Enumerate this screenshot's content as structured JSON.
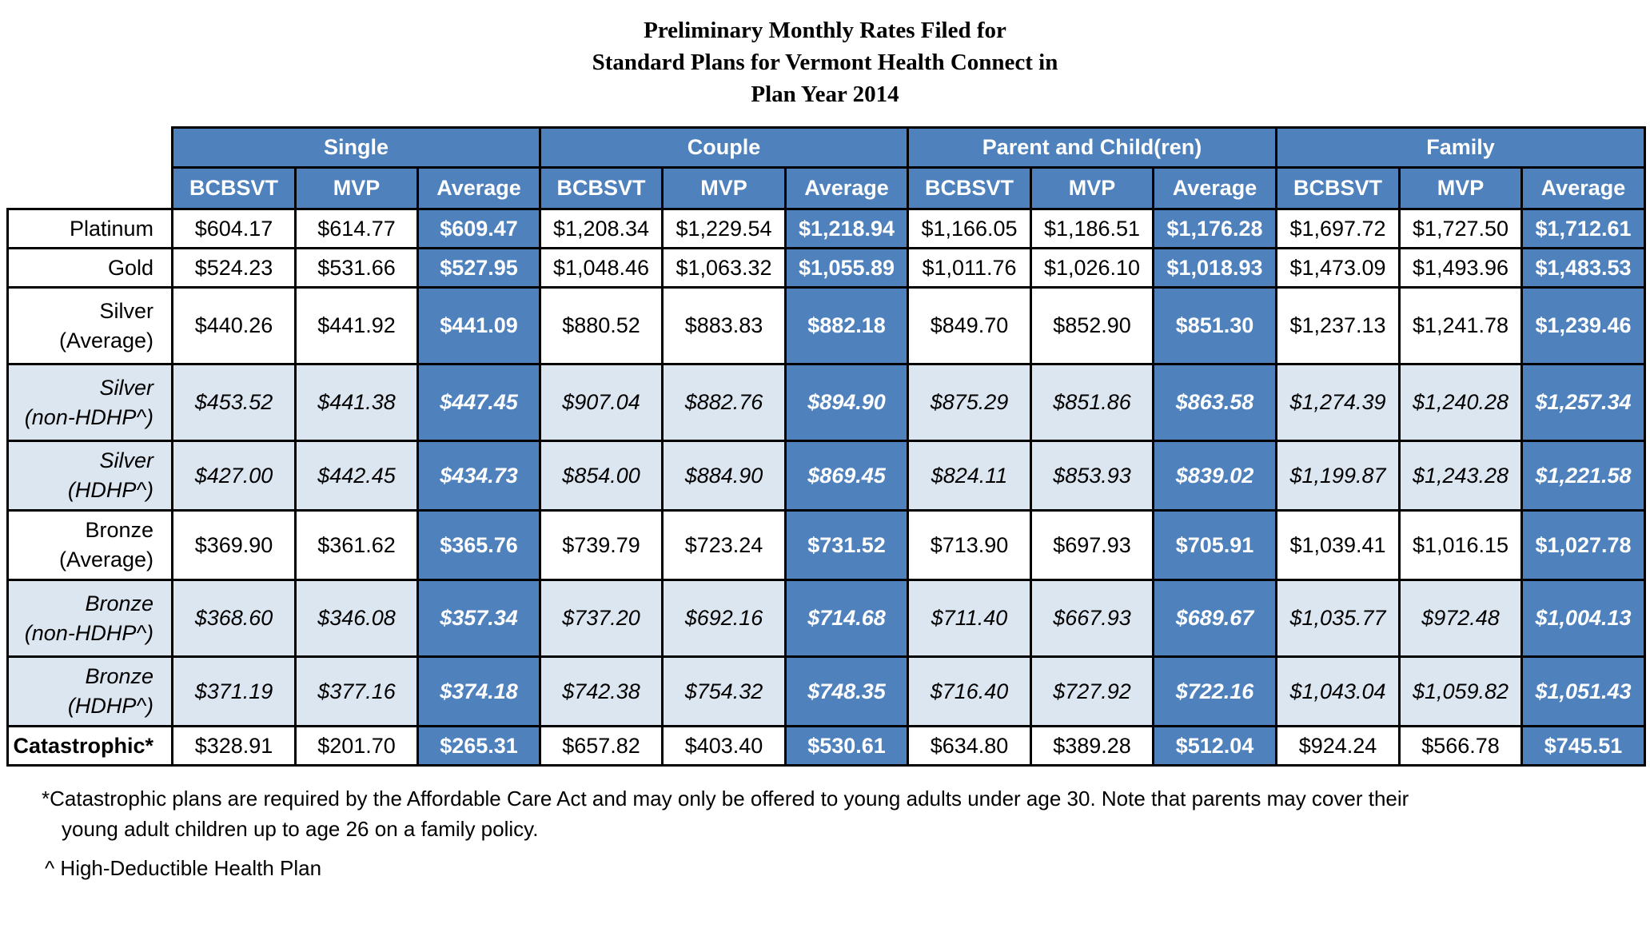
{
  "title": {
    "line1": "Preliminary Monthly Rates Filed for",
    "line2": "Standard Plans for Vermont Health Connect in",
    "line3": "Plan Year 2014"
  },
  "groups": [
    "Single",
    "Couple",
    "Parent and Child(ren)",
    "Family"
  ],
  "subheaders": [
    "BCBSVT",
    "MVP",
    "Average"
  ],
  "rows": [
    {
      "label": "Platinum",
      "values": [
        "$604.17",
        "$614.77",
        "$609.47",
        "$1,208.34",
        "$1,229.54",
        "$1,218.94",
        "$1,166.05",
        "$1,186.51",
        "$1,176.28",
        "$1,697.72",
        "$1,727.50",
        "$1,712.61"
      ]
    },
    {
      "label": "Gold",
      "values": [
        "$524.23",
        "$531.66",
        "$527.95",
        "$1,048.46",
        "$1,063.32",
        "$1,055.89",
        "$1,011.76",
        "$1,026.10",
        "$1,018.93",
        "$1,473.09",
        "$1,493.96",
        "$1,483.53"
      ]
    },
    {
      "label": "Silver",
      "label2": "(Average)",
      "values": [
        "$440.26",
        "$441.92",
        "$441.09",
        "$880.52",
        "$883.83",
        "$882.18",
        "$849.70",
        "$852.90",
        "$851.30",
        "$1,237.13",
        "$1,241.78",
        "$1,239.46"
      ]
    },
    {
      "label": "Silver",
      "label2": "(non-HDHP^)",
      "values": [
        "$453.52",
        "$441.38",
        "$447.45",
        "$907.04",
        "$882.76",
        "$894.90",
        "$875.29",
        "$851.86",
        "$863.58",
        "$1,274.39",
        "$1,240.28",
        "$1,257.34"
      ]
    },
    {
      "label": "Silver",
      "label2": "(HDHP^)",
      "values": [
        "$427.00",
        "$442.45",
        "$434.73",
        "$854.00",
        "$884.90",
        "$869.45",
        "$824.11",
        "$853.93",
        "$839.02",
        "$1,199.87",
        "$1,243.28",
        "$1,221.58"
      ]
    },
    {
      "label": "Bronze",
      "label2": "(Average)",
      "values": [
        "$369.90",
        "$361.62",
        "$365.76",
        "$739.79",
        "$723.24",
        "$731.52",
        "$713.90",
        "$697.93",
        "$705.91",
        "$1,039.41",
        "$1,016.15",
        "$1,027.78"
      ]
    },
    {
      "label": "Bronze",
      "label2": "(non-HDHP^)",
      "values": [
        "$368.60",
        "$346.08",
        "$357.34",
        "$737.20",
        "$692.16",
        "$714.68",
        "$711.40",
        "$667.93",
        "$689.67",
        "$1,035.77",
        "$972.48",
        "$1,004.13"
      ]
    },
    {
      "label": "Bronze",
      "label2": "(HDHP^)",
      "values": [
        "$371.19",
        "$377.16",
        "$374.18",
        "$742.38",
        "$754.32",
        "$748.35",
        "$716.40",
        "$727.92",
        "$722.16",
        "$1,043.04",
        "$1,059.82",
        "$1,051.43"
      ]
    },
    {
      "label": "Catastrophic*",
      "values": [
        "$328.91",
        "$201.70",
        "$265.31",
        "$657.82",
        "$403.40",
        "$530.61",
        "$634.80",
        "$389.28",
        "$512.04",
        "$924.24",
        "$566.78",
        "$745.51"
      ]
    }
  ],
  "footnotes": {
    "catastrophic_line1": "*Catastrophic plans are required by the Affordable Care Act and may only be offered to young adults under age 30.  Note that parents may cover their",
    "catastrophic_line2": "young adult children up to age 26 on a family policy.",
    "hdhp": "^ High-Deductible Health Plan"
  },
  "colors": {
    "header_blue": "#4f81bd",
    "light_blue": "#dce6f1"
  }
}
